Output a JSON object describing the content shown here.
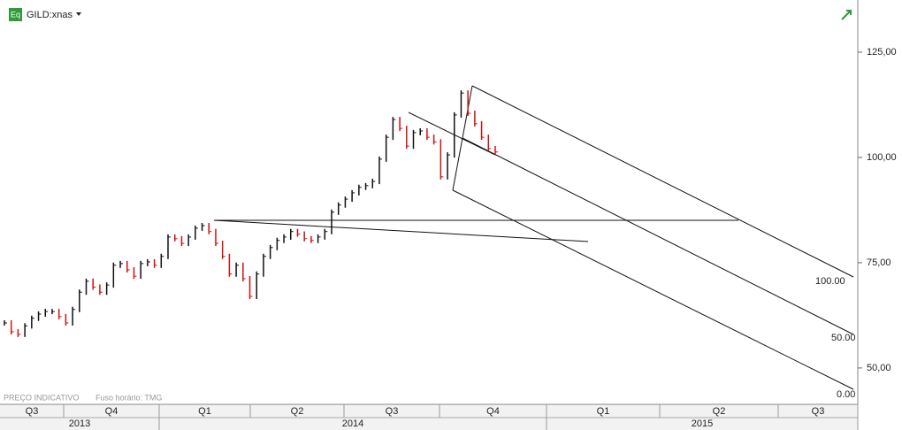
{
  "chart_data": {
    "type": "price",
    "symbol": "GILD:xnas",
    "icon_label": "Eq",
    "footer_notes": [
      "PREÇO INDICATIVO",
      "Fuso horário: TMG"
    ],
    "annotations": [
      "100.00",
      "50.00",
      "0.00"
    ],
    "quarters": [
      "Q3",
      "Q4",
      "Q1",
      "Q2",
      "Q3",
      "Q4",
      "Q1",
      "Q2",
      "Q3"
    ],
    "years": [
      "2013",
      "2014",
      "2015"
    ],
    "ylim": [
      44.3,
      137.4
    ],
    "yticks": [
      {
        "value": 50,
        "label": "50,00"
      },
      {
        "value": 75,
        "label": "75,00"
      },
      {
        "value": 100,
        "label": "100,00"
      },
      {
        "value": 125,
        "label": "125,00"
      }
    ],
    "up_color": "#111111",
    "down_color": "#d01010",
    "values": [
      60.7,
      58.6,
      58,
      60,
      61.8,
      62.8,
      63.4,
      63.4,
      62.2,
      60.7,
      63.9,
      68,
      70.6,
      69.2,
      68,
      69.7,
      74.4,
      74.8,
      73.3,
      71.8,
      74.8,
      75.2,
      74.4,
      76.5,
      81.1,
      80.7,
      79.6,
      81.1,
      83.2,
      83.8,
      82.4,
      79.6,
      76.5,
      72.3,
      74.4,
      71.2,
      67,
      72.3,
      76.5,
      78.6,
      80.3,
      81.1,
      82.4,
      81.8,
      80.7,
      80.3,
      81.1,
      82.4,
      87,
      88.7,
      90.1,
      91.6,
      92.9,
      93.3,
      94.3,
      99.6,
      104.8,
      109,
      106.9,
      102.7,
      105.9,
      106.3,
      104.8,
      103.7,
      95.4,
      100.6,
      110.1,
      115.3,
      110.5,
      108,
      104.8,
      102.1,
      101.3
    ]
  }
}
